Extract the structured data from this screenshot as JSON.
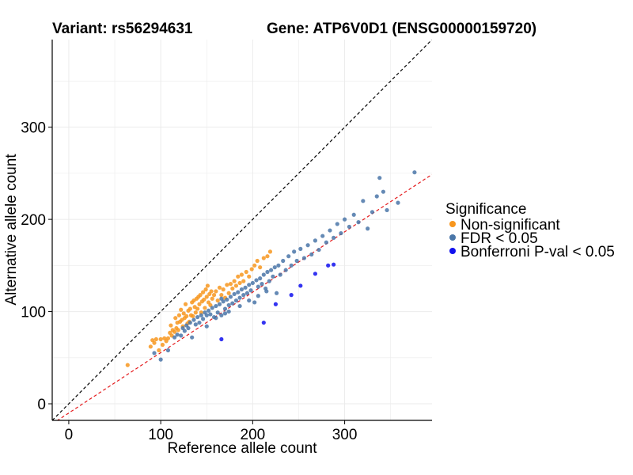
{
  "chart_data": {
    "type": "scatter",
    "title_left": "Variant: rs56294631",
    "title_right": "Gene: ATP6V0D1 (ENSG00000159720)",
    "xlabel": "Reference allele count",
    "ylabel": "Alternative allele count",
    "xlim": [
      -18,
      395
    ],
    "ylim": [
      -18,
      395
    ],
    "x_ticks": [
      0,
      100,
      200,
      300
    ],
    "y_ticks": [
      0,
      100,
      200,
      300
    ],
    "x_tick_labels": [
      "0",
      "100",
      "200",
      "300"
    ],
    "y_tick_labels": [
      "0",
      "100",
      "200",
      "300"
    ],
    "grid": true,
    "reference_lines": [
      {
        "name": "identity",
        "slope": 1.0,
        "intercept": 0,
        "color": "#000000",
        "style": "dashed"
      },
      {
        "name": "fit",
        "slope": 0.655,
        "intercept": -10,
        "color": "#e41a1c",
        "style": "dashed"
      }
    ],
    "legend": {
      "title": "Significance",
      "position": "right",
      "entries": [
        {
          "label": "Non-significant",
          "color": "#f7961e"
        },
        {
          "label": "FDR < 0.05",
          "color": "#4a76a8"
        },
        {
          "label": "Bonferroni P-val < 0.05",
          "color": "#1111ee"
        }
      ]
    },
    "series": [
      {
        "name": "Non-significant",
        "color": "#f7961e",
        "points": [
          [
            64,
            42
          ],
          [
            89,
            62
          ],
          [
            91,
            69
          ],
          [
            93,
            66
          ],
          [
            95,
            70
          ],
          [
            98,
            58
          ],
          [
            100,
            70
          ],
          [
            102,
            64
          ],
          [
            104,
            71
          ],
          [
            106,
            68
          ],
          [
            108,
            71
          ],
          [
            110,
            77
          ],
          [
            111,
            85
          ],
          [
            112,
            74
          ],
          [
            113,
            80
          ],
          [
            115,
            78
          ],
          [
            116,
            93
          ],
          [
            117,
            82
          ],
          [
            118,
            88
          ],
          [
            119,
            80
          ],
          [
            120,
            96
          ],
          [
            121,
            89
          ],
          [
            122,
            102
          ],
          [
            123,
            91
          ],
          [
            124,
            84
          ],
          [
            125,
            98
          ],
          [
            126,
            93
          ],
          [
            127,
            108
          ],
          [
            128,
            95
          ],
          [
            129,
            87
          ],
          [
            130,
            101
          ],
          [
            131,
            89
          ],
          [
            132,
            103
          ],
          [
            133,
            96
          ],
          [
            134,
            110
          ],
          [
            135,
            95
          ],
          [
            136,
            112
          ],
          [
            137,
            105
          ],
          [
            138,
            99
          ],
          [
            139,
            114
          ],
          [
            140,
            103
          ],
          [
            141,
            116
          ],
          [
            142,
            108
          ],
          [
            143,
            118
          ],
          [
            144,
            99
          ],
          [
            145,
            111
          ],
          [
            146,
            121
          ],
          [
            147,
            113
          ],
          [
            148,
            104
          ],
          [
            149,
            124
          ],
          [
            150,
            116
          ],
          [
            151,
            128
          ],
          [
            152,
            110
          ],
          [
            153,
            119
          ],
          [
            154,
            107
          ],
          [
            155,
            122
          ],
          [
            156,
            114
          ],
          [
            158,
            118
          ],
          [
            160,
            122
          ],
          [
            162,
            112
          ],
          [
            164,
            126
          ],
          [
            166,
            118
          ],
          [
            168,
            124
          ],
          [
            170,
            115
          ],
          [
            172,
            129
          ],
          [
            174,
            120
          ],
          [
            176,
            130
          ],
          [
            178,
            125
          ],
          [
            180,
            133
          ],
          [
            182,
            128
          ],
          [
            184,
            138
          ],
          [
            186,
            131
          ],
          [
            188,
            140
          ],
          [
            190,
            133
          ],
          [
            193,
            143
          ],
          [
            196,
            138
          ],
          [
            199,
            146
          ],
          [
            202,
            150
          ],
          [
            205,
            155
          ],
          [
            208,
            148
          ],
          [
            212,
            158
          ],
          [
            216,
            160
          ],
          [
            219,
            165
          ]
        ]
      },
      {
        "name": "FDR < 0.05",
        "color": "#4a76a8",
        "points": [
          [
            93,
            55
          ],
          [
            100,
            48
          ],
          [
            108,
            58
          ],
          [
            115,
            72
          ],
          [
            118,
            75
          ],
          [
            122,
            74
          ],
          [
            124,
            82
          ],
          [
            126,
            79
          ],
          [
            128,
            85
          ],
          [
            130,
            82
          ],
          [
            132,
            88
          ],
          [
            134,
            72
          ],
          [
            136,
            91
          ],
          [
            138,
            86
          ],
          [
            140,
            94
          ],
          [
            142,
            88
          ],
          [
            144,
            96
          ],
          [
            146,
            92
          ],
          [
            148,
            99
          ],
          [
            150,
            84
          ],
          [
            152,
            101
          ],
          [
            154,
            97
          ],
          [
            156,
            104
          ],
          [
            158,
            94
          ],
          [
            160,
            106
          ],
          [
            162,
            99
          ],
          [
            164,
            108
          ],
          [
            166,
            96
          ],
          [
            168,
            111
          ],
          [
            170,
            103
          ],
          [
            172,
            113
          ],
          [
            174,
            107
          ],
          [
            176,
            116
          ],
          [
            178,
            109
          ],
          [
            180,
            119
          ],
          [
            182,
            112
          ],
          [
            184,
            121
          ],
          [
            186,
            115
          ],
          [
            188,
            124
          ],
          [
            190,
            118
          ],
          [
            192,
            126
          ],
          [
            194,
            120
          ],
          [
            196,
            129
          ],
          [
            198,
            123
          ],
          [
            200,
            131
          ],
          [
            202,
            110
          ],
          [
            204,
            134
          ],
          [
            206,
            127
          ],
          [
            208,
            136
          ],
          [
            210,
            130
          ],
          [
            212,
            140
          ],
          [
            214,
            125
          ],
          [
            216,
            143
          ],
          [
            218,
            133
          ],
          [
            220,
            145
          ],
          [
            222,
            138
          ],
          [
            224,
            148
          ],
          [
            226,
            120
          ],
          [
            228,
            150
          ],
          [
            230,
            140
          ],
          [
            233,
            155
          ],
          [
            236,
            145
          ],
          [
            239,
            160
          ],
          [
            242,
            150
          ],
          [
            245,
            165
          ],
          [
            248,
            155
          ],
          [
            252,
            168
          ],
          [
            256,
            158
          ],
          [
            260,
            172
          ],
          [
            264,
            162
          ],
          [
            268,
            177
          ],
          [
            272,
            167
          ],
          [
            276,
            182
          ],
          [
            280,
            175
          ],
          [
            284,
            188
          ],
          [
            288,
            180
          ],
          [
            292,
            195
          ],
          [
            296,
            185
          ],
          [
            300,
            200
          ],
          [
            305,
            192
          ],
          [
            310,
            205
          ],
          [
            315,
            197
          ],
          [
            320,
            220
          ],
          [
            325,
            190
          ],
          [
            330,
            208
          ],
          [
            335,
            225
          ],
          [
            338,
            245
          ],
          [
            342,
            230
          ],
          [
            346,
            210
          ],
          [
            358,
            218
          ],
          [
            376,
            251
          ],
          [
            166,
            114
          ],
          [
            174,
            100
          ],
          [
            186,
            106
          ],
          [
            196,
            112
          ],
          [
            206,
            117
          ],
          [
            215,
            122
          ],
          [
            150,
            96
          ],
          [
            160,
            93
          ],
          [
            170,
            98
          ]
        ]
      },
      {
        "name": "Bonferroni P-val < 0.05",
        "color": "#1111ee",
        "points": [
          [
            166,
            70
          ],
          [
            212,
            88
          ],
          [
            225,
            108
          ],
          [
            242,
            118
          ],
          [
            252,
            128
          ],
          [
            268,
            141
          ],
          [
            282,
            150
          ],
          [
            288,
            151
          ]
        ]
      }
    ]
  }
}
